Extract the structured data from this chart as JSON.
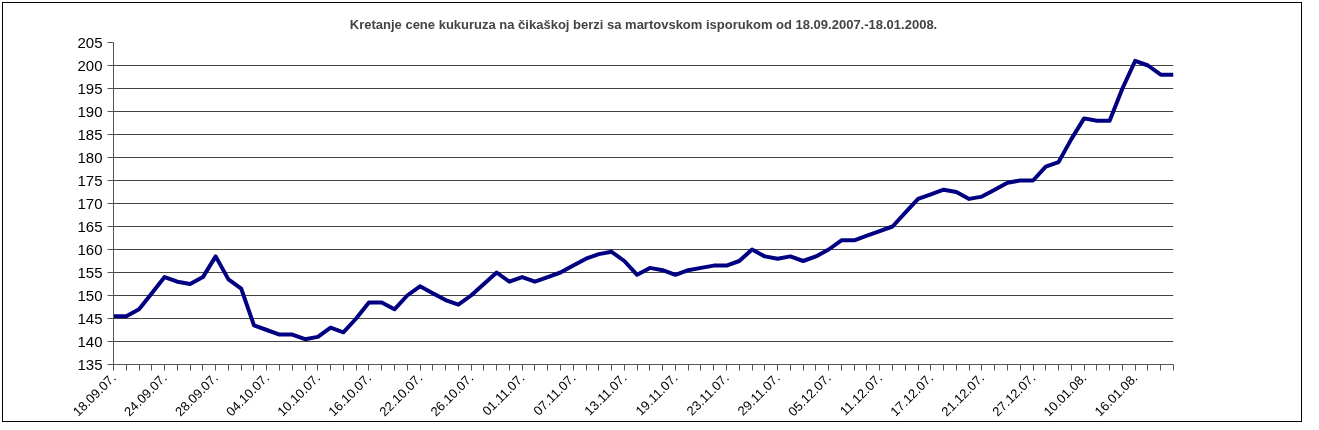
{
  "chart_data": {
    "type": "line",
    "title": "Kretanje cene kukuruza na čikaškoj berzi sa martovskom isporukom od 18.09.2007.-18.01.2008.",
    "categories": [
      "18.09.07.",
      null,
      null,
      null,
      "24.09.07.",
      null,
      null,
      null,
      "28.09.07.",
      null,
      null,
      null,
      "04.10.07.",
      null,
      null,
      null,
      "10.10.07.",
      null,
      null,
      null,
      "16.10.07.",
      null,
      null,
      null,
      "22.10.07.",
      null,
      null,
      null,
      "26.10.07.",
      null,
      null,
      null,
      "01.11.07.",
      null,
      null,
      null,
      "07.11.07.",
      null,
      null,
      null,
      "13.11.07.",
      null,
      null,
      null,
      "19.11.07.",
      null,
      null,
      null,
      "23.11.07.",
      null,
      null,
      null,
      "29.11.07.",
      null,
      null,
      null,
      "05.12.07.",
      null,
      null,
      null,
      "11.12.07.",
      null,
      null,
      null,
      "17.12.07.",
      null,
      null,
      null,
      "21.12.07.",
      null,
      null,
      null,
      "27.12.07.",
      null,
      null,
      null,
      "10.01.08.",
      null,
      null,
      null,
      "16.01.08.",
      null,
      null,
      null
    ],
    "series": [
      {
        "color": "#000080",
        "values": [
          145.5,
          145.5,
          147,
          150.5,
          154,
          153,
          152.5,
          154,
          158.5,
          153.5,
          151.5,
          143.5,
          142.5,
          141.5,
          141.5,
          140.5,
          141,
          143,
          142,
          145,
          148.5,
          148.5,
          147,
          150,
          152,
          150.5,
          149,
          148,
          150,
          152.5,
          155,
          153,
          154,
          153,
          154,
          155,
          156.5,
          158,
          159,
          159.5,
          157.5,
          154.5,
          156,
          155.5,
          154.5,
          155.5,
          156,
          156.5,
          156.5,
          157.5,
          160,
          158.5,
          158,
          158.5,
          157.5,
          158.5,
          160,
          162,
          162,
          163,
          164,
          165,
          168,
          171,
          172,
          173,
          172.5,
          171,
          171.5,
          173,
          174.5,
          175,
          175,
          178,
          179,
          184,
          188.5,
          188,
          188,
          195,
          201,
          200,
          198,
          198
        ]
      }
    ],
    "ylim": [
      135,
      205
    ],
    "yticks": [
      135,
      140,
      145,
      150,
      155,
      160,
      165,
      170,
      175,
      180,
      185,
      190,
      195,
      200,
      205
    ],
    "grid": "y",
    "marker": "none",
    "line_style": "solid"
  }
}
